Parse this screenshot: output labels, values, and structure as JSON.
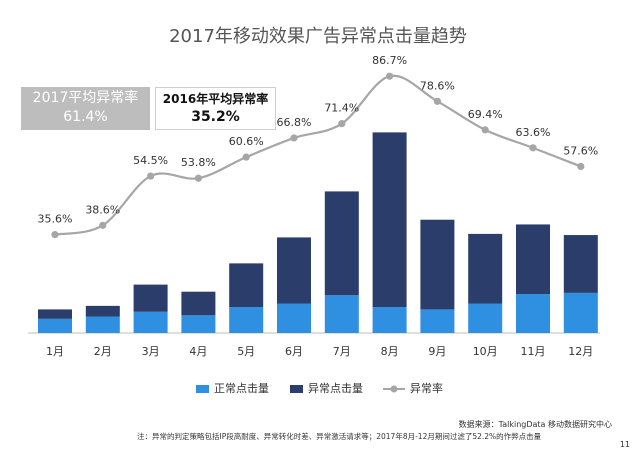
{
  "chart_data": {
    "type": "bar",
    "title": "2017年移动效果广告异常点击量趋势",
    "categories": [
      "1月",
      "2月",
      "3月",
      "4月",
      "5月",
      "6月",
      "7月",
      "8月",
      "9月",
      "10月",
      "11月",
      "12月"
    ],
    "series": [
      {
        "name": "正常点击量",
        "kind": "bar",
        "stack": "clicks",
        "color": "#2f8fe0",
        "values": [
          12,
          14,
          18,
          15,
          22,
          25,
          32,
          22,
          20,
          25,
          33,
          34
        ]
      },
      {
        "name": "异常点击量",
        "kind": "bar",
        "stack": "clicks",
        "color": "#2b3d6b",
        "values": [
          8,
          9,
          23,
          20,
          37,
          56,
          88,
          148,
          76,
          59,
          59,
          49
        ]
      },
      {
        "name": "异常率",
        "kind": "line",
        "color": "#a6a6a6",
        "values": [
          35.6,
          38.6,
          54.5,
          53.8,
          60.6,
          66.8,
          71.4,
          86.7,
          78.6,
          69.4,
          63.6,
          57.6
        ],
        "labels": [
          "35.6%",
          "38.6%",
          "54.5%",
          "53.8%",
          "60.6%",
          "66.8%",
          "71.4%",
          "86.7%",
          "78.6%",
          "69.4%",
          "63.6%",
          "57.6%"
        ]
      }
    ],
    "legend": "bottom",
    "grid": false
  },
  "boxes": {
    "y2017_label": "2017平均异常率",
    "y2017_value": "61.4%",
    "y2016_label": "2016年平均异常率",
    "y2016_value": "35.2%"
  },
  "footer": {
    "source": "数据来源：TalkingData 移动数据研究中心",
    "note": "注：异常的判定策略包括IP段高耐度、异常转化时差、异常激活请求等；2017年8月-12月期间过滤了52.2%的作弊点击量",
    "page": "11"
  }
}
